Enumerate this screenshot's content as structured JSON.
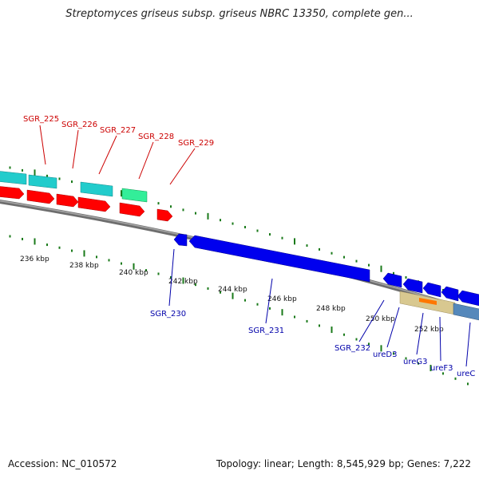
{
  "title": "Streptomyces griseus subsp. griseus NBRC 13350, complete gen...",
  "footer": {
    "accession": "Accession: NC_010572",
    "summary": "Topology: linear; Length: 8,545,929 bp; Genes: 7,222"
  },
  "colors": {
    "backbone": "#808080",
    "tick": "#1a7a1a",
    "forward_label": "#cc0000",
    "reverse_label": "#0000aa",
    "cds_forward": "#ff0000",
    "rna_forward": "#22cccc",
    "rna_light": "#33ee99",
    "cds_reverse": "#0000ee",
    "rna_reverse": "#5588bb",
    "region": "#d8c890",
    "highlight": "#ff7700"
  },
  "scale_labels": [
    "236 kbp",
    "238 kbp",
    "240 kbp",
    "242 kbp",
    "244 kbp",
    "246 kbp",
    "248 kbp",
    "250 kbp",
    "252 kbp"
  ],
  "forward_gene_labels": [
    "SGR_225",
    "SGR_226",
    "SGR_227",
    "SGR_228",
    "SGR_229"
  ],
  "reverse_gene_labels": [
    "SGR_230",
    "SGR_231",
    "SGR_232",
    "ureD3",
    "ureG3",
    "ureF3",
    "ureC"
  ]
}
